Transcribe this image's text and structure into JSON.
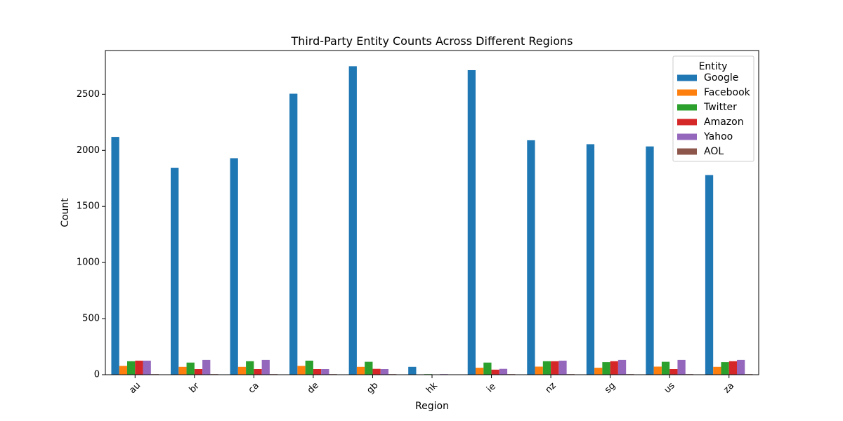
{
  "chart_data": {
    "type": "bar",
    "title": "Third-Party Entity Counts Across Different Regions",
    "xlabel": "Region",
    "ylabel": "Count",
    "ylim": [
      0,
      2890
    ],
    "yticks": [
      0,
      500,
      1000,
      1500,
      2000,
      2500
    ],
    "categories": [
      "au",
      "br",
      "ca",
      "de",
      "gb",
      "hk",
      "ie",
      "nz",
      "sg",
      "us",
      "za"
    ],
    "legend": {
      "title": "Entity",
      "placement": "top-right"
    },
    "grid": false,
    "series": [
      {
        "name": "Google",
        "color": "#1f77b4",
        "values": [
          2120,
          1845,
          1930,
          2505,
          2750,
          70,
          2715,
          2090,
          2055,
          2035,
          1780
        ]
      },
      {
        "name": "Facebook",
        "color": "#ff7f0e",
        "values": [
          78,
          70,
          70,
          78,
          70,
          0,
          62,
          72,
          62,
          72,
          70
        ]
      },
      {
        "name": "Twitter",
        "color": "#2ca02c",
        "values": [
          120,
          108,
          120,
          125,
          115,
          5,
          108,
          120,
          112,
          115,
          112
        ]
      },
      {
        "name": "Amazon",
        "color": "#d62728",
        "values": [
          125,
          50,
          50,
          50,
          52,
          0,
          45,
          120,
          120,
          50,
          120
        ]
      },
      {
        "name": "Yahoo",
        "color": "#9467bd",
        "values": [
          125,
          132,
          132,
          50,
          50,
          5,
          52,
          125,
          132,
          132,
          132
        ]
      },
      {
        "name": "AOL",
        "color": "#8c564b",
        "values": [
          5,
          5,
          5,
          5,
          5,
          0,
          5,
          5,
          5,
          5,
          5
        ]
      }
    ]
  }
}
